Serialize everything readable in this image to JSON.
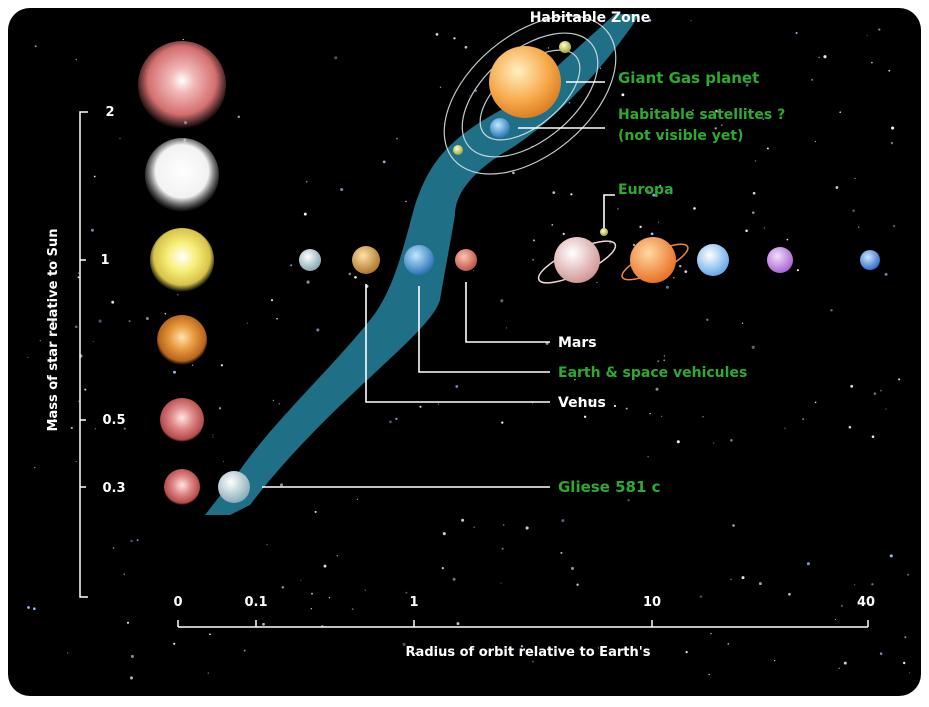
{
  "title": "Habitable Zone",
  "y_axis": {
    "label": "Mass of star relative to Sun",
    "ticks": [
      "2",
      "1",
      "0.5",
      "0.3"
    ]
  },
  "x_axis": {
    "label": "Radius of orbit relative to Earth's",
    "ticks": [
      "0",
      "0.1",
      "1",
      "10",
      "40"
    ]
  },
  "labels": {
    "giant_gas": "Giant Gas planet",
    "satellites_line1": "Habitable satellites ?",
    "satellites_line2": "(not visible yet)",
    "europa": "Europa",
    "mars": "Mars",
    "earth": "Earth & space vehicules",
    "venus": "Venus",
    "gliese": "Gliese 581 c"
  },
  "colors": {
    "background": "#000000",
    "habitable_zone": "#1f6f86",
    "accent_text": "#2eaa2e",
    "white_text": "#ffffff"
  }
}
